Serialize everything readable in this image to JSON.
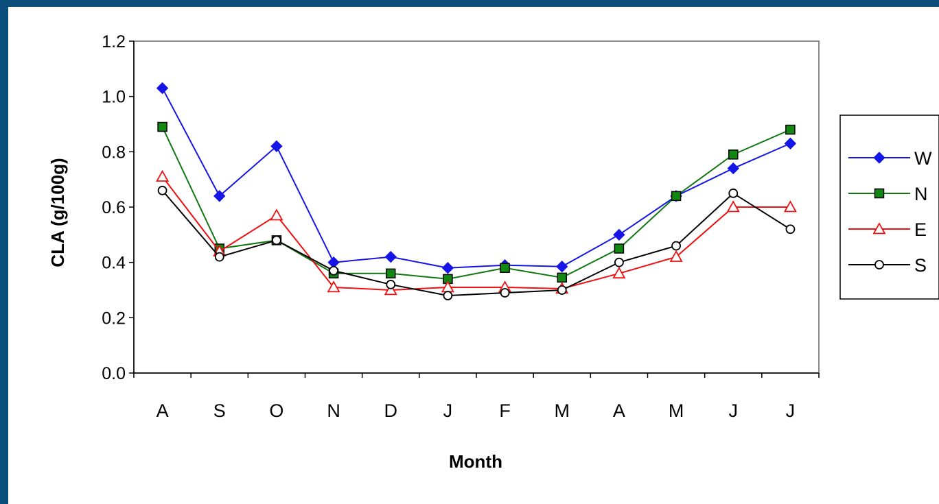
{
  "chart_data": {
    "type": "line",
    "title": "",
    "xlabel": "Month",
    "ylabel": "CLA (g/100g)",
    "categories": [
      "A",
      "S",
      "O",
      "N",
      "D",
      "J",
      "F",
      "M",
      "A",
      "M",
      "J",
      "J"
    ],
    "ylim": [
      0.0,
      1.2
    ],
    "yticks": [
      "0.0",
      "0.2",
      "0.4",
      "0.6",
      "0.8",
      "1.0",
      "1.2"
    ],
    "grid": false,
    "legend_position": "right",
    "series": [
      {
        "name": "W",
        "color": "#1515e8",
        "marker": "diamond",
        "values": [
          1.03,
          0.64,
          0.82,
          0.4,
          0.42,
          0.38,
          0.39,
          0.385,
          0.5,
          0.64,
          0.74,
          0.83
        ]
      },
      {
        "name": "N",
        "color": "#117711",
        "marker": "square",
        "values": [
          0.89,
          0.45,
          0.48,
          0.36,
          0.36,
          0.34,
          0.38,
          0.345,
          0.45,
          0.64,
          0.79,
          0.88
        ]
      },
      {
        "name": "E",
        "color": "#ee1111",
        "marker": "triangle",
        "values": [
          0.71,
          0.44,
          0.57,
          0.31,
          0.3,
          0.31,
          0.31,
          0.305,
          0.36,
          0.42,
          0.6,
          0.6
        ]
      },
      {
        "name": "S",
        "color": "#000000",
        "marker": "circle",
        "values": [
          0.66,
          0.42,
          0.48,
          0.37,
          0.32,
          0.28,
          0.29,
          0.3,
          0.4,
          0.46,
          0.65,
          0.52
        ]
      }
    ]
  }
}
